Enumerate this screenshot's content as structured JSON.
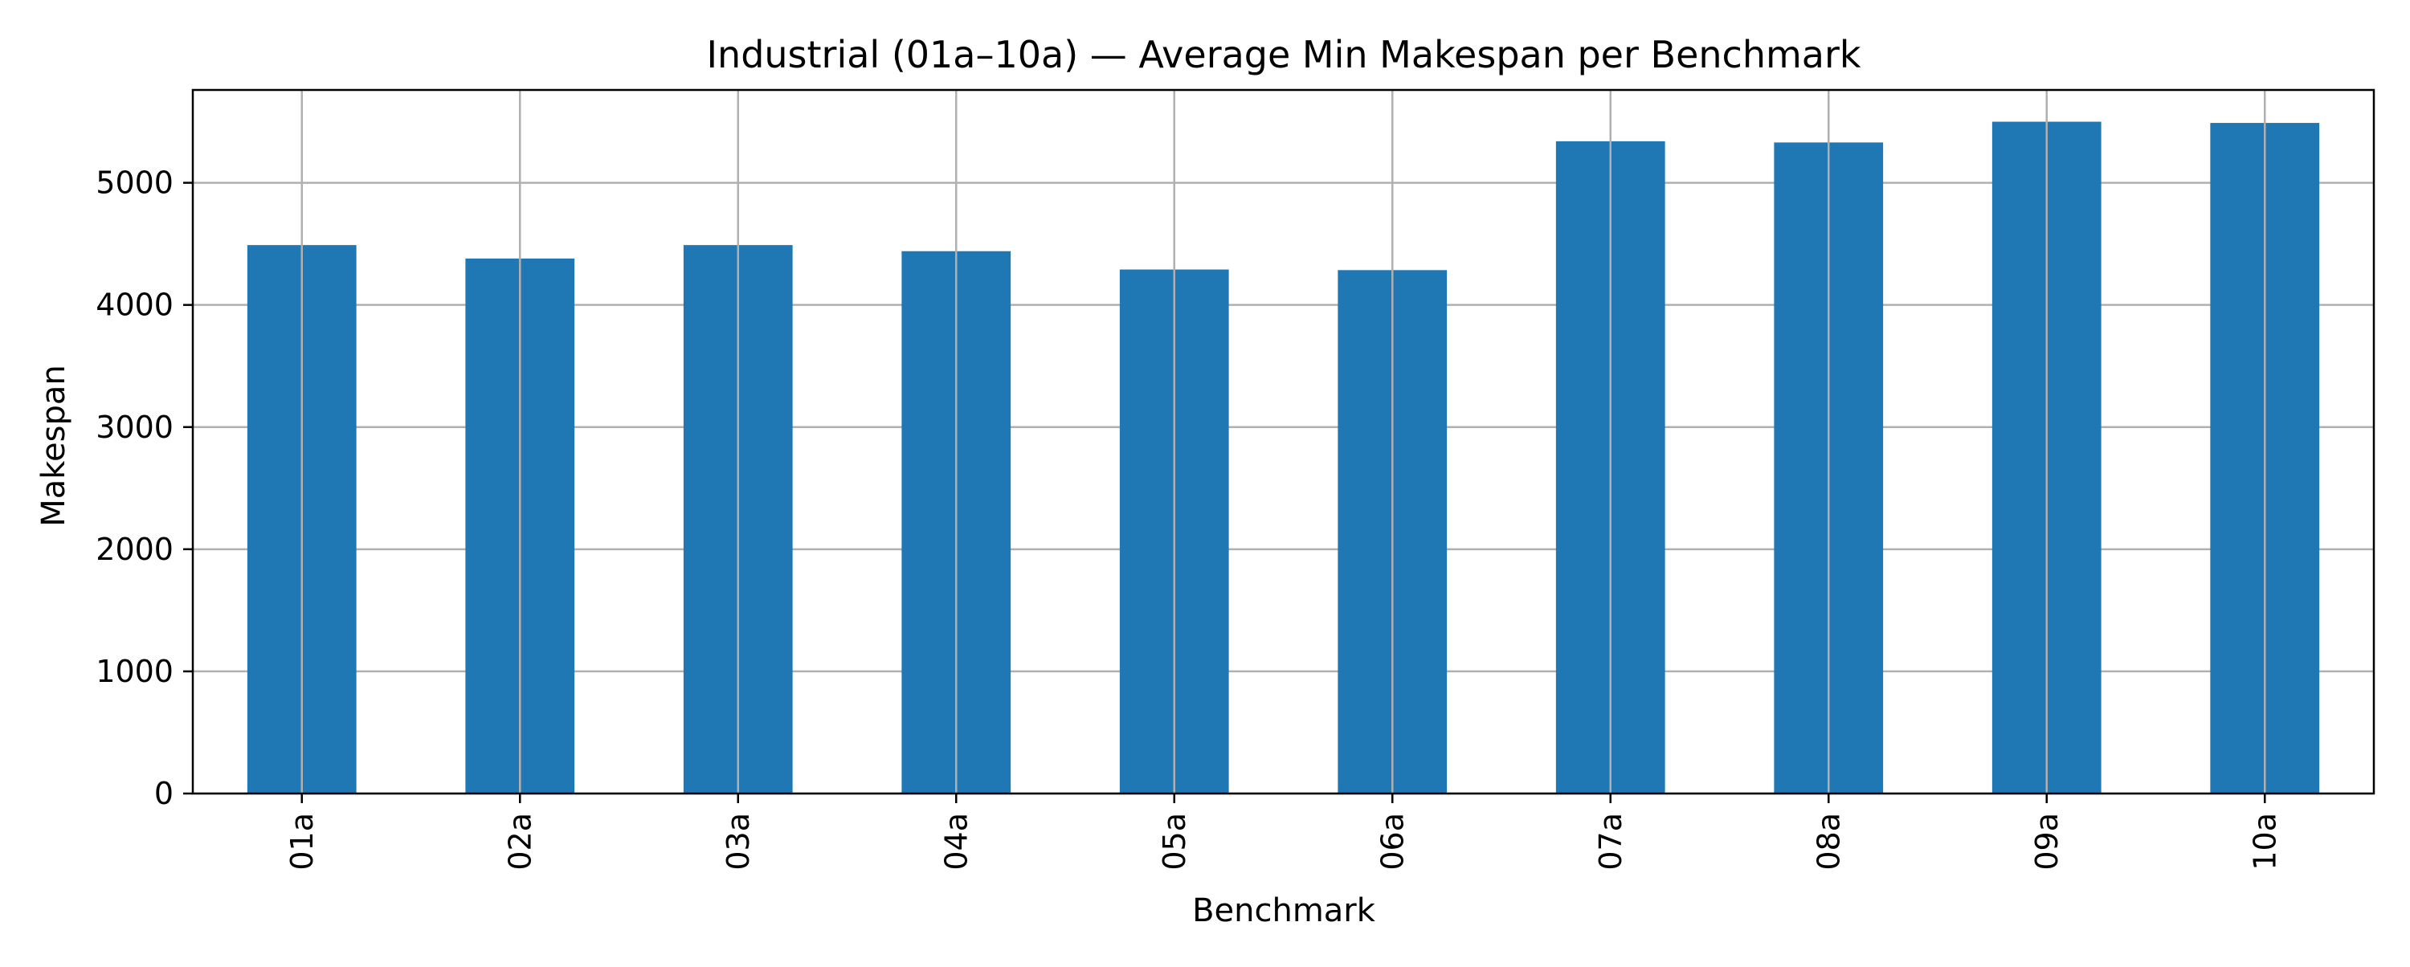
{
  "chart_data": {
    "type": "bar",
    "title": "Industrial (01a–10a) — Average Min Makespan per Benchmark",
    "xlabel": "Benchmark",
    "ylabel": "Makespan",
    "categories": [
      "01a",
      "02a",
      "03a",
      "04a",
      "05a",
      "06a",
      "07a",
      "08a",
      "09a",
      "10a"
    ],
    "values": [
      4490,
      4380,
      4490,
      4440,
      4290,
      4285,
      5340,
      5330,
      5500,
      5490
    ],
    "ylim": [
      0,
      5760
    ],
    "yticks": [
      0,
      1000,
      2000,
      3000,
      4000,
      5000
    ],
    "grid": true,
    "x_tick_rotation": 90,
    "colors": {
      "bar": "#1f77b4",
      "grid": "#b0b0b0",
      "axis": "#000000"
    }
  }
}
